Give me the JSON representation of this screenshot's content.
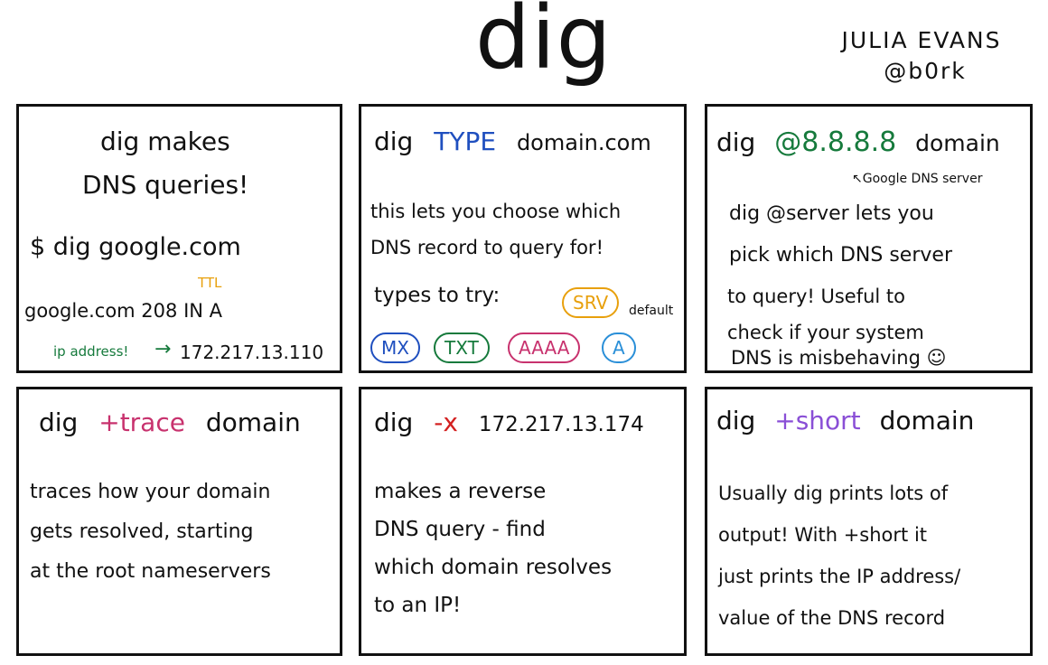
{
  "title": "dig",
  "author": {
    "name": "JULIA EVANS",
    "handle": "@b0rk"
  },
  "panels": {
    "p1": {
      "heading_line1": "dig makes",
      "heading_line2": "DNS queries!",
      "command": "$ dig google.com",
      "ttl_label": "TTL",
      "answer": "google.com 208 IN A",
      "ip_label": "ip address!",
      "arrow": "→",
      "ip_value": "172.217.13.110"
    },
    "p2": {
      "cmd": "dig",
      "arg": "TYPE",
      "domain": "domain.com",
      "line1": "this lets you choose which",
      "line2": "DNS record to query for!",
      "types_label": "types to try:",
      "default_label": "default",
      "types": [
        "SRV",
        "MX",
        "TXT",
        "AAAA",
        "A"
      ]
    },
    "p3": {
      "cmd": "dig",
      "arg": "@8.8.8.8",
      "domain": "domain",
      "note": "↖Google DNS server",
      "line1": "dig @server lets you",
      "line2": "pick which DNS server",
      "line3": "to query! Useful to",
      "line4": "check if your system",
      "line5": "DNS is misbehaving ☺"
    },
    "p4": {
      "cmd": "dig",
      "arg": "+trace",
      "domain": "domain",
      "line1": "traces how your domain",
      "line2": "gets resolved, starting",
      "line3": "at the root nameservers"
    },
    "p5": {
      "cmd": "dig",
      "arg": "-x",
      "domain": "172.217.13.174",
      "line1": "makes a reverse",
      "line2": "DNS query - find",
      "line3": "which domain resolves",
      "line4": "to an IP!"
    },
    "p6": {
      "cmd": "dig",
      "arg": "+short",
      "domain": "domain",
      "line1": "Usually dig prints lots of",
      "line2": "output! With +short it",
      "line3": "just prints the IP address/",
      "line4": "value of the DNS record"
    }
  }
}
